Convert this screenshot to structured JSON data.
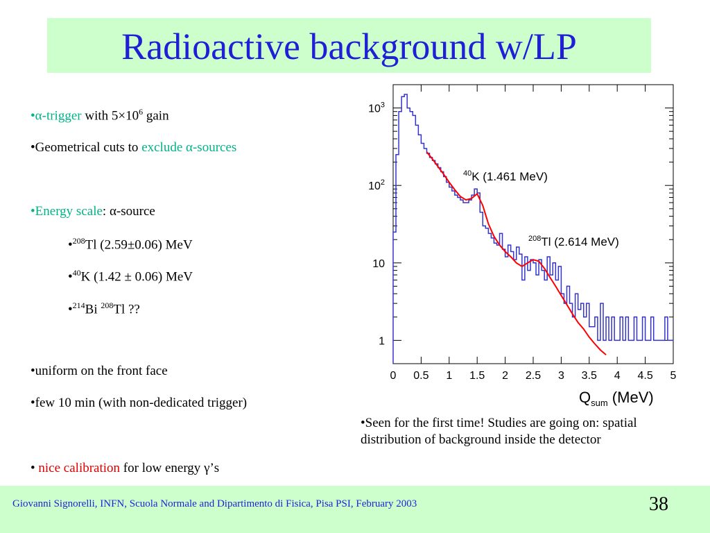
{
  "slide": {
    "title": "Radioactive background w/LP",
    "page_number": "38",
    "footer": "Giovanni Signorelli, INFN, Scuola Normale and  Dipartimento di Fisica, Pisa    PSI, February 2003"
  },
  "bullets": {
    "b1": {
      "dot": "•",
      "alpha": "α",
      "hl": "-trigger",
      "rest": " with 5×10",
      "exp": "6",
      "tail": " gain"
    },
    "b2": {
      "text": "•Geometrical cuts to ",
      "alpha": "α",
      "hl1": "exclude ",
      "hl2": "-sources"
    },
    "b3": {
      "dot": "•",
      "hl": "Energy scale",
      "rest": ": ",
      "alpha": "α",
      "tail": "-source"
    },
    "s1": {
      "dot": "•",
      "sup": "208",
      "text": "Tl  (2.59±0.06) MeV"
    },
    "s2": {
      "dot": "•",
      "sup": "40",
      "text": "K (1.42 ± 0.06) MeV"
    },
    "s3": {
      "dot": "•",
      "sup1": "214",
      "text1": "Bi ",
      "sup2": "208",
      "text2": "Tl ??"
    },
    "b4": {
      "text": "•uniform on the front face"
    },
    "b5": {
      "text": "•few 10 min (with non-dedicated trigger)"
    },
    "b6": {
      "dot": "• ",
      "hl": "nice calibration",
      "rest": " for low energy ",
      "gamma": "γ",
      "tail": "’s"
    }
  },
  "note": "•Seen for the first time! Studies are going on: spatial distribution of background inside the detector",
  "chart_data": {
    "type": "line",
    "xlabel": "Q",
    "xlabel_sub": "sum",
    "xlabel_unit": " (MeV)",
    "xlim": [
      0,
      5
    ],
    "ylim": [
      0.5,
      2000
    ],
    "yscale": "log",
    "x_ticks": [
      "0",
      "0.5",
      "1",
      "1.5",
      "2",
      "2.5",
      "3",
      "3.5",
      "4",
      "4.5",
      "5"
    ],
    "x_tick_values": [
      0,
      0.5,
      1,
      1.5,
      2,
      2.5,
      3,
      3.5,
      4,
      4.5,
      5
    ],
    "y_ticks": [
      {
        "value": 1000,
        "base": "10",
        "exp": "3"
      },
      {
        "value": 100,
        "base": "10",
        "exp": "2"
      },
      {
        "value": 10,
        "base": "10",
        "exp": ""
      },
      {
        "value": 1,
        "base": "1",
        "exp": ""
      }
    ],
    "annotations": [
      {
        "sup": "40",
        "text": "K (1.461 MeV)",
        "x": 1.461,
        "y": 200
      },
      {
        "sup": "208",
        "text": "Tl (2.614 MeV)",
        "x": 2.614,
        "y": 25
      }
    ],
    "colors": {
      "histogram": "#3333cc",
      "fit": "#ff0000"
    },
    "series": [
      {
        "style": "histogram",
        "x": [
          0.0,
          0.05,
          0.1,
          0.15,
          0.2,
          0.25,
          0.3,
          0.35,
          0.4,
          0.45,
          0.5,
          0.55,
          0.6,
          0.65,
          0.7,
          0.75,
          0.8,
          0.85,
          0.9,
          0.95,
          1.0,
          1.05,
          1.1,
          1.15,
          1.2,
          1.25,
          1.3,
          1.35,
          1.4,
          1.45,
          1.5,
          1.55,
          1.6,
          1.65,
          1.7,
          1.75,
          1.8,
          1.85,
          1.9,
          1.95,
          2.0,
          2.05,
          2.1,
          2.15,
          2.2,
          2.25,
          2.3,
          2.35,
          2.4,
          2.45,
          2.5,
          2.55,
          2.6,
          2.65,
          2.7,
          2.75,
          2.8,
          2.85,
          2.9,
          2.95,
          3.0,
          3.05,
          3.1,
          3.15,
          3.2,
          3.25,
          3.3,
          3.35,
          3.4,
          3.45,
          3.5,
          3.55,
          3.6,
          3.65,
          3.7,
          3.75,
          3.8,
          3.85,
          3.9,
          3.95,
          4.0,
          4.05,
          4.1,
          4.15,
          4.2,
          4.25,
          4.3,
          4.35,
          4.4,
          4.45,
          4.5,
          4.55,
          4.6,
          4.65,
          4.7,
          4.75,
          4.8,
          4.85,
          4.9,
          4.95
        ],
        "y": [
          25,
          250,
          900,
          1400,
          1500,
          1000,
          900,
          800,
          600,
          450,
          350,
          300,
          260,
          230,
          210,
          190,
          170,
          150,
          130,
          110,
          95,
          85,
          75,
          70,
          65,
          60,
          60,
          65,
          75,
          90,
          80,
          45,
          30,
          28,
          24,
          21,
          18,
          17,
          24,
          15,
          12,
          17,
          14,
          11,
          16,
          13,
          6,
          12,
          8,
          11,
          10,
          7,
          11,
          8,
          6,
          12,
          7,
          10,
          6,
          9,
          4,
          3,
          5,
          3,
          2,
          4,
          2.5,
          3,
          2,
          3,
          1.5,
          1.5,
          2,
          1,
          3,
          1,
          2,
          1,
          2,
          1,
          1,
          2,
          1,
          2,
          1,
          1,
          2,
          1,
          1,
          2,
          1,
          1,
          2,
          1,
          1,
          1,
          1,
          2,
          1,
          1
        ]
      },
      {
        "style": "fit",
        "x": [
          0.6,
          0.7,
          0.8,
          0.9,
          1.0,
          1.1,
          1.2,
          1.3,
          1.4,
          1.5,
          1.6,
          1.7,
          1.8,
          1.9,
          2.0,
          2.1,
          2.2,
          2.3,
          2.4,
          2.5,
          2.6,
          2.7,
          2.8,
          2.9,
          3.0,
          3.1,
          3.2,
          3.3,
          3.4,
          3.5,
          3.6,
          3.7,
          3.8
        ],
        "y": [
          270,
          220,
          175,
          140,
          110,
          88,
          72,
          65,
          68,
          78,
          55,
          32,
          22,
          17,
          14,
          12,
          10,
          9,
          10,
          11,
          10.5,
          8.5,
          6.5,
          5,
          3.8,
          2.9,
          2.2,
          1.7,
          1.4,
          1.1,
          0.9,
          0.75,
          0.65
        ]
      }
    ]
  }
}
